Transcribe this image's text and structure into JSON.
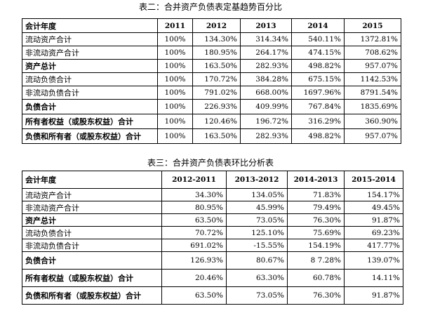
{
  "table1": {
    "caption": "表二：合并资产负债表定基趋势百分比",
    "headers": [
      "会计年度",
      "2011",
      "2012",
      "2013",
      "2014",
      "2015"
    ],
    "rows": [
      {
        "label": "流动资产合计",
        "bold": false,
        "values": [
          "100%",
          "134.30%",
          "314.34%",
          "540.11%",
          "1372.81%"
        ]
      },
      {
        "label": "非流动资产合计",
        "bold": false,
        "values": [
          "100%",
          "180.95%",
          "264.17%",
          "474.15%",
          "708.62%"
        ]
      },
      {
        "label": "资产总计",
        "bold": true,
        "values": [
          "100%",
          "163.50%",
          "282.93%",
          "498.82%",
          "957.07%"
        ]
      },
      {
        "label": "流动负债合计",
        "bold": false,
        "values": [
          "100%",
          "170.72%",
          "384.28%",
          "675.15%",
          "1142.53%"
        ]
      },
      {
        "label": "非流动负债合计",
        "bold": false,
        "values": [
          "100%",
          "791.02%",
          "668.00%",
          "1697.96%",
          "8791.54%"
        ]
      },
      {
        "label": "负债合计",
        "bold": true,
        "values": [
          "100%",
          "226.93%",
          "409.99%",
          "767.84%",
          "1835.69%"
        ]
      },
      {
        "label": "所有者权益（或股东权益）合计",
        "bold": true,
        "values": [
          "100%",
          "120.46%",
          "196.72%",
          "316.29%",
          "360.90%"
        ]
      },
      {
        "label": "负债和所有者（或股东权益）合计",
        "bold": true,
        "values": [
          "100%",
          "163.50%",
          "282.93%",
          "498.82%",
          "957.07%"
        ]
      }
    ]
  },
  "table2": {
    "caption": "表三：合并资产负债表环比分析表",
    "headers": [
      "会计年度",
      "2012-2011",
      "2013-2012",
      "2014-2013",
      "2015-2014"
    ],
    "rows": [
      {
        "label": "流动资产合计",
        "bold": false,
        "values": [
          "34.30%",
          "134.05%",
          "71.83%",
          "154.17%"
        ]
      },
      {
        "label": "非流动资产合计",
        "bold": false,
        "values": [
          "80.95%",
          "45.99%",
          "79.49%",
          "49.45%"
        ]
      },
      {
        "label": "资产总计",
        "bold": true,
        "values": [
          "63.50%",
          "73.05%",
          "76.30%",
          "91.87%"
        ]
      },
      {
        "label": "流动负债合计",
        "bold": false,
        "values": [
          "70.72%",
          "125.10%",
          "75.69%",
          "69.23%"
        ]
      },
      {
        "label": "非流动负债合计",
        "bold": false,
        "values": [
          "691.02%",
          "-15.55%",
          "154.19%",
          "417.77%"
        ]
      },
      {
        "label": "负债合计",
        "bold": true,
        "values": [
          "126.93%",
          "80.67%",
          "8 7.28%",
          "139.07%"
        ]
      },
      {
        "label": "所有者权益（或股东权益）合计",
        "bold": true,
        "values": [
          "20.46%",
          "63.30%",
          "60.78%",
          "14.11%"
        ]
      },
      {
        "label": "负债和所有者（或股东权益）合计",
        "bold": true,
        "values": [
          "63.50%",
          "73.05%",
          "76.30%",
          "91.87%"
        ]
      }
    ]
  }
}
